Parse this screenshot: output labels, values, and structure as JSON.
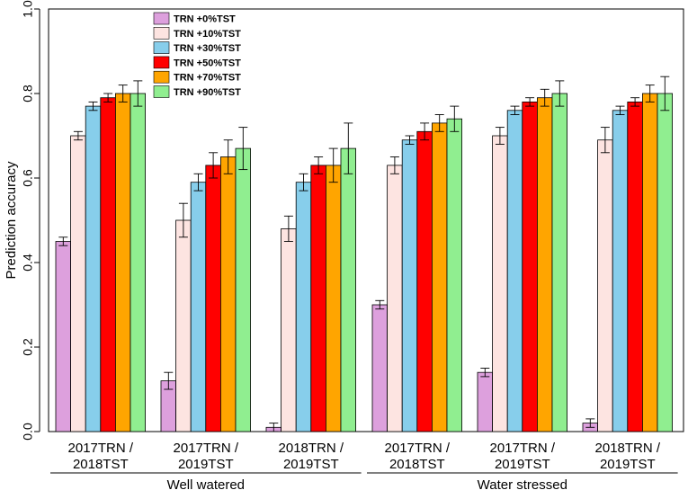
{
  "chart_data": {
    "type": "bar",
    "ylabel": "Prediction accuracy",
    "ylim": [
      0.0,
      1.0
    ],
    "yticks": [
      "0.0",
      "0.2",
      "0.4",
      "0.6",
      "0.8",
      "1.0"
    ],
    "ytick_values": [
      0.0,
      0.2,
      0.4,
      0.6,
      0.8,
      1.0
    ],
    "legend_position": "top-left",
    "categories": [
      {
        "line1": "2017TRN /",
        "line2": "2018TST"
      },
      {
        "line1": "2017TRN /",
        "line2": "2019TST"
      },
      {
        "line1": "2018TRN /",
        "line2": "2019TST"
      },
      {
        "line1": "2017TRN /",
        "line2": "2018TST"
      },
      {
        "line1": "2017TRN /",
        "line2": "2019TST"
      },
      {
        "line1": "2018TRN /",
        "line2": "2019TST"
      }
    ],
    "groups": [
      {
        "label": "Well watered",
        "category_indices": [
          0,
          1,
          2
        ]
      },
      {
        "label": "Water stressed",
        "category_indices": [
          3,
          4,
          5
        ]
      }
    ],
    "series": [
      {
        "name": "TRN +0%TST",
        "color": "#dda0dd",
        "values": [
          0.45,
          0.12,
          0.01,
          0.3,
          0.14,
          0.02
        ],
        "errors": [
          0.01,
          0.02,
          0.01,
          0.01,
          0.01,
          0.01
        ]
      },
      {
        "name": "TRN +10%TST",
        "color": "#fde4e1",
        "values": [
          0.7,
          0.5,
          0.48,
          0.63,
          0.7,
          0.69
        ],
        "errors": [
          0.01,
          0.04,
          0.03,
          0.02,
          0.02,
          0.03
        ]
      },
      {
        "name": "TRN +30%TST",
        "color": "#87ceeb",
        "values": [
          0.77,
          0.59,
          0.59,
          0.69,
          0.76,
          0.76
        ],
        "errors": [
          0.01,
          0.02,
          0.02,
          0.01,
          0.01,
          0.01
        ]
      },
      {
        "name": "TRN +50%TST",
        "color": "#ff0000",
        "values": [
          0.79,
          0.63,
          0.63,
          0.71,
          0.78,
          0.78
        ],
        "errors": [
          0.01,
          0.03,
          0.02,
          0.02,
          0.01,
          0.01
        ]
      },
      {
        "name": "TRN +70%TST",
        "color": "#ffa500",
        "values": [
          0.8,
          0.65,
          0.63,
          0.73,
          0.79,
          0.8
        ],
        "errors": [
          0.02,
          0.04,
          0.04,
          0.02,
          0.02,
          0.02
        ]
      },
      {
        "name": "TRN +90%TST",
        "color": "#90ee90",
        "values": [
          0.8,
          0.67,
          0.67,
          0.74,
          0.8,
          0.8
        ],
        "errors": [
          0.03,
          0.05,
          0.06,
          0.03,
          0.03,
          0.04
        ]
      }
    ]
  }
}
